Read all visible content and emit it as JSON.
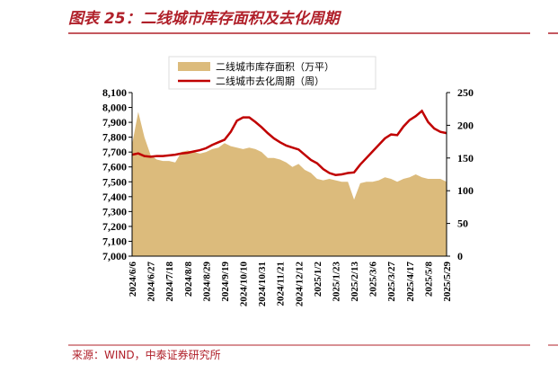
{
  "chart_data": {
    "type": "area-line",
    "title": "图表 25：二线城市库存面积及去化周期",
    "source": "来源：WIND，中泰证券研究所",
    "categories": [
      "2024/6/6",
      null,
      null,
      "2024/6/27",
      null,
      null,
      "2024/7/18",
      null,
      null,
      "2024/8/8",
      null,
      null,
      "2024/8/29",
      null,
      null,
      "2024/9/19",
      null,
      null,
      "2024/10/10",
      null,
      null,
      "2024/10/31",
      null,
      null,
      "2024/11/21",
      null,
      null,
      "2024/12/12",
      null,
      null,
      "2025/1/2",
      null,
      null,
      "2025/1/23",
      null,
      null,
      "2025/2/13",
      null,
      null,
      "2025/3/6",
      null,
      null,
      "2025/3/27",
      null,
      null,
      "2025/4/17",
      null,
      null,
      "2025/5/8",
      null,
      null,
      "2025/5/29"
    ],
    "series": [
      {
        "name": "二线城市库存面积（万平）",
        "kind": "area",
        "color": "#dcbb7c",
        "values": [
          7750,
          7970,
          7800,
          7680,
          7650,
          7640,
          7640,
          7630,
          7700,
          7710,
          7700,
          7690,
          7700,
          7720,
          7730,
          7760,
          7740,
          7730,
          7720,
          7730,
          7720,
          7700,
          7660,
          7660,
          7650,
          7630,
          7600,
          7620,
          7580,
          7560,
          7520,
          7510,
          7520,
          7510,
          7500,
          7500,
          7380,
          7490,
          7500,
          7500,
          7510,
          7530,
          7520,
          7500,
          7520,
          7530,
          7550,
          7530,
          7520,
          7520,
          7520,
          7500
        ]
      },
      {
        "name": "二线城市去化周期（周）",
        "kind": "line",
        "color": "#c00000",
        "axis": "y2",
        "values": [
          155,
          157,
          153,
          152,
          153,
          153,
          154,
          155,
          157,
          158,
          160,
          162,
          165,
          170,
          174,
          178,
          190,
          207,
          212,
          212,
          205,
          197,
          188,
          180,
          174,
          169,
          166,
          163,
          155,
          147,
          142,
          133,
          127,
          124,
          125,
          127,
          128,
          140,
          150,
          160,
          170,
          180,
          186,
          185,
          198,
          208,
          214,
          222,
          205,
          195,
          190,
          188
        ]
      }
    ],
    "ylim": [
      7000,
      8100
    ],
    "yticks": [
      {
        "value": 7000,
        "label": "7,000"
      },
      {
        "value": 7100,
        "label": "7,100"
      },
      {
        "value": 7200,
        "label": "7,200"
      },
      {
        "value": 7300,
        "label": "7,300"
      },
      {
        "value": 7400,
        "label": "7,400"
      },
      {
        "value": 7500,
        "label": "7,500"
      },
      {
        "value": 7600,
        "label": "7,600"
      },
      {
        "value": 7700,
        "label": "7,700"
      },
      {
        "value": 7800,
        "label": "7,800"
      },
      {
        "value": 7900,
        "label": "7,900"
      },
      {
        "value": 8000,
        "label": "8,000"
      },
      {
        "value": 8100,
        "label": "8,100"
      }
    ],
    "y2lim": [
      0,
      250
    ],
    "y2ticks": [
      0,
      50,
      100,
      150,
      200,
      250
    ]
  }
}
